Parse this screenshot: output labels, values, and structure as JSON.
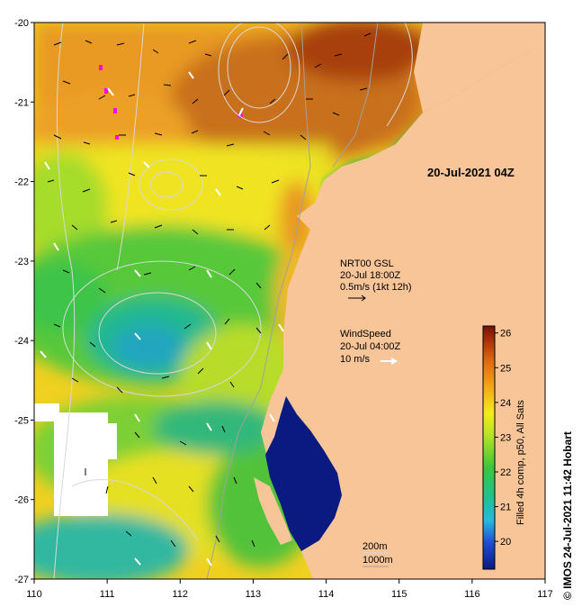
{
  "map": {
    "x_range": [
      110,
      117
    ],
    "y_range": [
      -27,
      -20
    ],
    "x_ticks": [
      "110",
      "111",
      "112",
      "113",
      "114",
      "115",
      "116",
      "117"
    ],
    "y_ticks": [
      "-20",
      "-21",
      "-22",
      "-23",
      "-24",
      "-25",
      "-26",
      "-27"
    ],
    "land_color": "#f7c598",
    "deep_water_color": "#0a1a80"
  },
  "date_label": "20-Jul-2021 04Z",
  "current_legend": {
    "line1": "NRT00 GSL",
    "line2": "20-Jul 18:00Z",
    "line3": "0.5m/s (1kt 12h)"
  },
  "wind_legend": {
    "line1": "WindSpeed",
    "line2": "20-Jul 04:00Z",
    "line3": "10 m/s"
  },
  "contour_legend": {
    "line1": "200m",
    "line2": "1000m"
  },
  "colorbar": {
    "min": 19.2,
    "max": 26.2,
    "ticks": [
      "20",
      "21",
      "22",
      "23",
      "24",
      "25",
      "26"
    ],
    "title": "Filled 4h comp, p50, All Sats"
  },
  "credit": "© IMOS 24-Jul-2021 11:42 Hobart"
}
